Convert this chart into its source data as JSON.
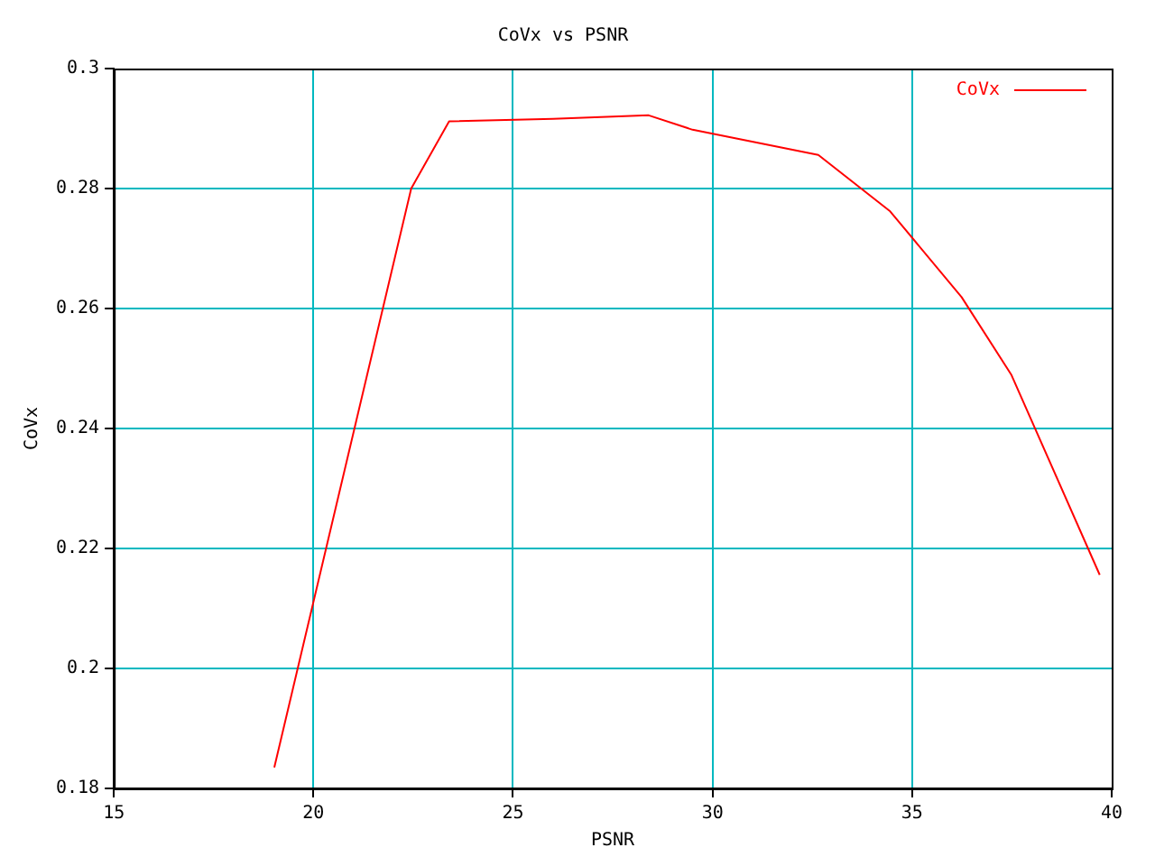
{
  "chart_data": {
    "type": "line",
    "title": "CoVx vs PSNR",
    "xlabel": "PSNR",
    "ylabel": "CoVx",
    "x": [
      19.02,
      22.45,
      23.4,
      26.0,
      28.4,
      29.5,
      32.65,
      34.45,
      36.24,
      37.49,
      39.7
    ],
    "series": [
      {
        "name": "CoVx",
        "color": "#ff0000",
        "values": [
          0.1835,
          0.28,
          0.2912,
          0.2916,
          0.2922,
          0.2898,
          0.2856,
          0.2762,
          0.2619,
          0.2489,
          0.2156
        ]
      }
    ],
    "xlim": [
      15,
      40
    ],
    "xticks": [
      15,
      20,
      25,
      30,
      35,
      40
    ],
    "ylim": [
      0.18,
      0.3
    ],
    "yticks": [
      0.18,
      0.2,
      0.22,
      0.24,
      0.26,
      0.28,
      0.3
    ],
    "grid": true,
    "legend": "top right",
    "marker": "none",
    "line_style": "solid"
  }
}
